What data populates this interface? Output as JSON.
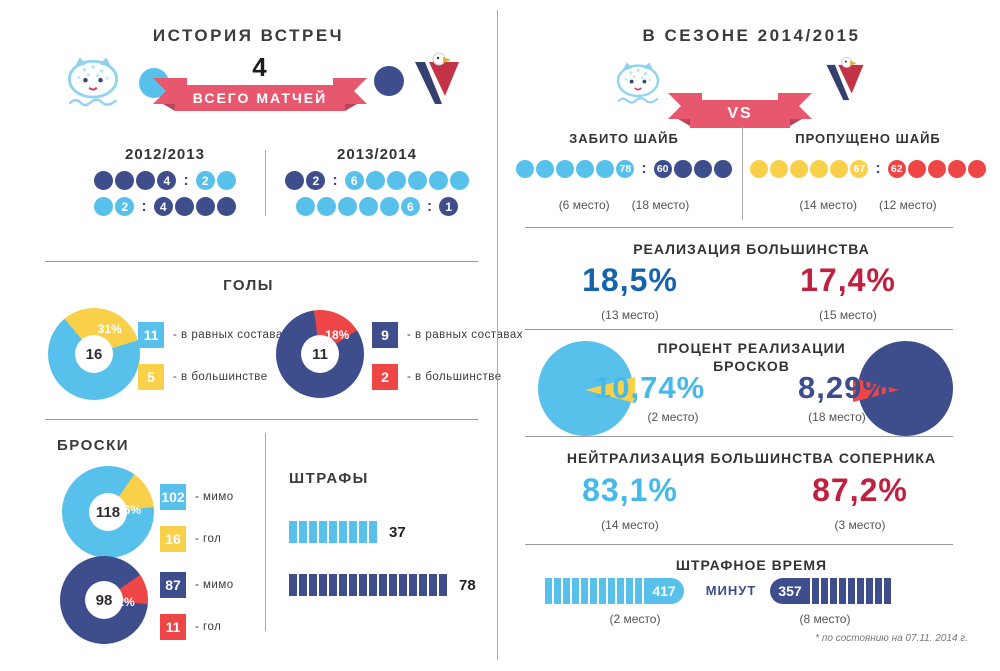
{
  "palette": {
    "light_blue": "#57C1EC",
    "navy": "#3E4D8C",
    "yellow": "#F8D04A",
    "red": "#EE4646",
    "ribbon_red": "#E7586E",
    "royal_blue": "#1563AC",
    "crimson": "#C0203F",
    "sky_text": "#45B9E9",
    "heading": "#3B3B3B"
  },
  "left_panel": {
    "title": "ИСТОРИЯ ВСТРЕЧ",
    "total_matches": {
      "value": "4",
      "ribbon_label": "ВСЕГО МАТЧЕЙ"
    },
    "seasons": [
      {
        "label": "2012/2013",
        "rows": [
          {
            "groups": [
              {
                "color": "navy",
                "count": 4,
                "num": "4",
                "num_at": "end"
              },
              {
                "color": "light_blue",
                "count": 2,
                "num": "2",
                "num_at": "start"
              }
            ]
          },
          {
            "groups": [
              {
                "color": "light_blue",
                "count": 2,
                "num": "2",
                "num_at": "end"
              },
              {
                "color": "navy",
                "count": 4,
                "num": "4",
                "num_at": "start"
              }
            ]
          }
        ]
      },
      {
        "label": "2013/2014",
        "rows": [
          {
            "groups": [
              {
                "color": "navy",
                "count": 2,
                "num": "2",
                "num_at": "end"
              },
              {
                "color": "light_blue",
                "count": 6,
                "num": "6",
                "num_at": "start"
              }
            ]
          },
          {
            "groups": [
              {
                "color": "light_blue",
                "count": 6,
                "num": "6",
                "num_at": "end"
              },
              {
                "color": "navy",
                "count": 1,
                "num": "1",
                "num_at": "start"
              }
            ]
          }
        ]
      }
    ],
    "goals_title": "ГОЛЫ",
    "shots_title": "БРОСКИ",
    "penalties": {
      "title": "ШТРАФЫ",
      "bars": [
        {
          "label": "37",
          "segments": 9,
          "color": "light_blue"
        },
        {
          "label": "78",
          "segments": 16,
          "color": "navy"
        }
      ]
    }
  },
  "right_panel": {
    "title": "В СЕЗОНЕ 2014/2015",
    "vs_label": "VS",
    "scored": {
      "title": "ЗАБИТО ШАЙБ",
      "home": {
        "color": "light_blue",
        "count": 6,
        "num": "78",
        "rank": "(6 место)"
      },
      "away": {
        "color": "navy",
        "count": 4,
        "num": "60",
        "rank": "(18 место)"
      }
    },
    "conceded": {
      "title": "ПРОПУЩЕНО ШАЙБ",
      "home": {
        "color": "yellow",
        "count": 6,
        "num": "67",
        "rank": "(14 место)"
      },
      "away": {
        "color": "red",
        "count": 5,
        "num": "62",
        "rank": "(12 место)"
      }
    },
    "powerplay": {
      "title": "РЕАЛИЗАЦИЯ БОЛЬШИНСТВА",
      "home": {
        "value": "18,5%",
        "rank": "(13 место)"
      },
      "away": {
        "value": "17,4%",
        "rank": "(15 место)"
      }
    },
    "shot_pct": {
      "title_line1": "ПРОЦЕНТ РЕАЛИЗАЦИИ",
      "title_line2": "БРОСКОВ",
      "home": {
        "value": "10,74%",
        "rank": "(2 место)"
      },
      "away": {
        "value": "8,29%",
        "rank": "(18 место)"
      }
    },
    "penalty_kill": {
      "title": "НЕЙТРАЛИЗАЦИЯ БОЛЬШИНСТВА СОПЕРНИКА",
      "home": {
        "value": "83,1%",
        "rank": "(14 место)"
      },
      "away": {
        "value": "87,2%",
        "rank": "(3 место)"
      }
    },
    "penalty_time": {
      "title": "ШТРАФНОЕ ВРЕМЯ",
      "unit": "МИНУТ",
      "home": {
        "value": "417",
        "segments": 11,
        "color": "light_blue",
        "rank": "(2 место)"
      },
      "away": {
        "value": "357",
        "segments": 9,
        "color": "navy",
        "rank": "(8 место)"
      }
    },
    "footnote": "* по состоянию на 07.11. 2014 г."
  },
  "chart_data": [
    {
      "id": "goals-home",
      "type": "pie",
      "section": "ГОЛЫ",
      "center_label": "16",
      "slice_label": "31%",
      "start_deg": -40,
      "slices": [
        {
          "label": "- в равных составах",
          "value": 11,
          "color": "light_blue"
        },
        {
          "label": "- в большинстве",
          "value": 5,
          "color": "yellow"
        }
      ]
    },
    {
      "id": "goals-away",
      "type": "pie",
      "section": "ГОЛЫ",
      "center_label": "11",
      "slice_label": "18%",
      "start_deg": -8,
      "slices": [
        {
          "label": "- в равных составах",
          "value": 9,
          "color": "navy"
        },
        {
          "label": "- в большинстве",
          "value": 2,
          "color": "red"
        }
      ]
    },
    {
      "id": "shots-home",
      "type": "pie",
      "section": "БРОСКИ",
      "center_label": "118",
      "slice_label": "13,6%",
      "start_deg": 35,
      "slices": [
        {
          "label": "- мимо",
          "value": 102,
          "color": "light_blue"
        },
        {
          "label": "- гол",
          "value": 16,
          "color": "yellow"
        }
      ]
    },
    {
      "id": "shots-away",
      "type": "pie",
      "section": "БРОСКИ",
      "center_label": "98",
      "slice_label": "11,2%",
      "start_deg": 55,
      "slices": [
        {
          "label": "- мимо",
          "value": 87,
          "color": "navy"
        },
        {
          "label": "- гол",
          "value": 11,
          "color": "red"
        }
      ]
    },
    {
      "id": "penalties-history",
      "type": "bar",
      "title": "ШТРАФЫ",
      "categories": [
        "команда слева",
        "команда справа"
      ],
      "values": [
        37,
        78
      ]
    },
    {
      "id": "penalty-minutes-2014-15",
      "type": "bar",
      "title": "ШТРАФНОЕ ВРЕМЯ (МИНУТ)",
      "categories": [
        "команда слева",
        "команда справа"
      ],
      "values": [
        417,
        357
      ]
    },
    {
      "id": "history-scores",
      "type": "table",
      "title": "ИСТОРИЯ ВСТРЕЧ — ВСЕГО МАТЧЕЙ: 4",
      "columns": [
        "сезон",
        "матч 1",
        "матч 2"
      ],
      "rows": [
        [
          "2012/2013",
          "4:2",
          "2:4"
        ],
        [
          "2013/2014",
          "2:6",
          "6:1"
        ]
      ]
    },
    {
      "id": "season-2014-15",
      "type": "table",
      "title": "В СЕЗОНЕ 2014/2015",
      "columns": [
        "показатель",
        "команда слева",
        "команда справа"
      ],
      "rows": [
        [
          "ЗАБИТО ШАЙБ",
          "78 (6 место)",
          "60 (18 место)"
        ],
        [
          "ПРОПУЩЕНО ШАЙБ",
          "67 (14 место)",
          "62 (12 место)"
        ],
        [
          "РЕАЛИЗАЦИЯ БОЛЬШИНСТВА",
          "18,5% (13 место)",
          "17,4% (15 место)"
        ],
        [
          "ПРОЦЕНТ РЕАЛИЗАЦИИ БРОСКОВ",
          "10,74% (2 место)",
          "8,29% (18 место)"
        ],
        [
          "НЕЙТРАЛИЗАЦИЯ БОЛЬШИНСТВА СОПЕРНИКА",
          "83,1% (14 место)",
          "87,2% (3 место)"
        ],
        [
          "ШТРАФНОЕ ВРЕМЯ, МИНУТ",
          "417 (2 место)",
          "357 (8 место)"
        ]
      ]
    }
  ]
}
